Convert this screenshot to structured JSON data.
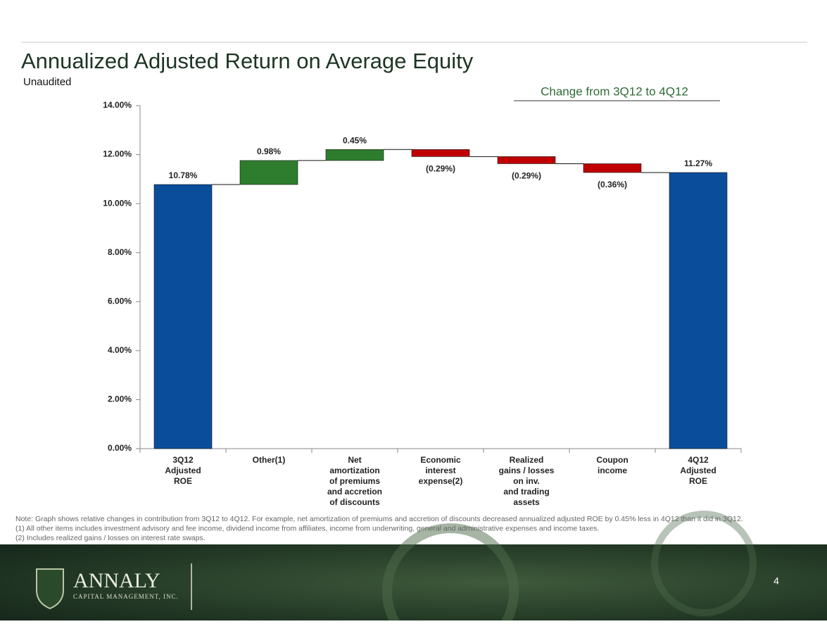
{
  "chart_data": {
    "type": "waterfall",
    "title": "Annualized Adjusted Return on Average Equity",
    "subtitle": "Unaudited",
    "annotation": "Change from 3Q12 to 4Q12",
    "categories": [
      [
        "3Q12",
        "Adjusted",
        "ROE"
      ],
      [
        "Other(1)"
      ],
      [
        "Net",
        "amortization",
        "of premiums",
        "and accretion",
        "of discounts"
      ],
      [
        "Economic",
        "interest",
        "expense(2)"
      ],
      [
        "Realized",
        "gains / losses",
        "on inv.",
        "and trading",
        "assets"
      ],
      [
        "Coupon",
        "income"
      ],
      [
        "4Q12",
        "Adjusted",
        "ROE"
      ]
    ],
    "values": [
      10.78,
      0.98,
      0.45,
      -0.29,
      -0.29,
      -0.36,
      11.27
    ],
    "value_labels": [
      "10.78%",
      "0.98%",
      "0.45%",
      "(0.29%)",
      "(0.29%)",
      "(0.36%)",
      "11.27%"
    ],
    "measure": [
      "absolute",
      "relative",
      "relative",
      "relative",
      "relative",
      "relative",
      "absolute"
    ],
    "colors": [
      "#0a4e9b",
      "#2e7d2e",
      "#2e7d2e",
      "#c00000",
      "#c00000",
      "#c00000",
      "#0a4e9b"
    ],
    "ylim": [
      0,
      14
    ],
    "yticks": [
      {
        "value": 0,
        "label": "0.00%"
      },
      {
        "value": 2,
        "label": "2.00%"
      },
      {
        "value": 4,
        "label": "4.00%"
      },
      {
        "value": 6,
        "label": "6.00%"
      },
      {
        "value": 8,
        "label": "8.00%"
      },
      {
        "value": 10,
        "label": "10.00%"
      },
      {
        "value": 12,
        "label": "12.00%"
      },
      {
        "value": 14,
        "label": "14.00%"
      }
    ],
    "notes": [
      "Note:  Graph shows relative changes in contribution from 3Q12 to 4Q12.  For example, net amortization of premiums and accretion of discounts decreased annualized adjusted ROE by 0.45% less in 4Q12 than it did in 3Q12.",
      "(1) All other items includes investment advisory and fee income, dividend income from affiliates, income from underwriting, general and administrative expenses and income taxes.",
      "(2) Includes realized gains / losses on interest rate swaps."
    ]
  },
  "footer": {
    "company": "ANNALY",
    "company_subtitle": "CAPITAL MANAGEMENT, INC.",
    "page": "4"
  }
}
